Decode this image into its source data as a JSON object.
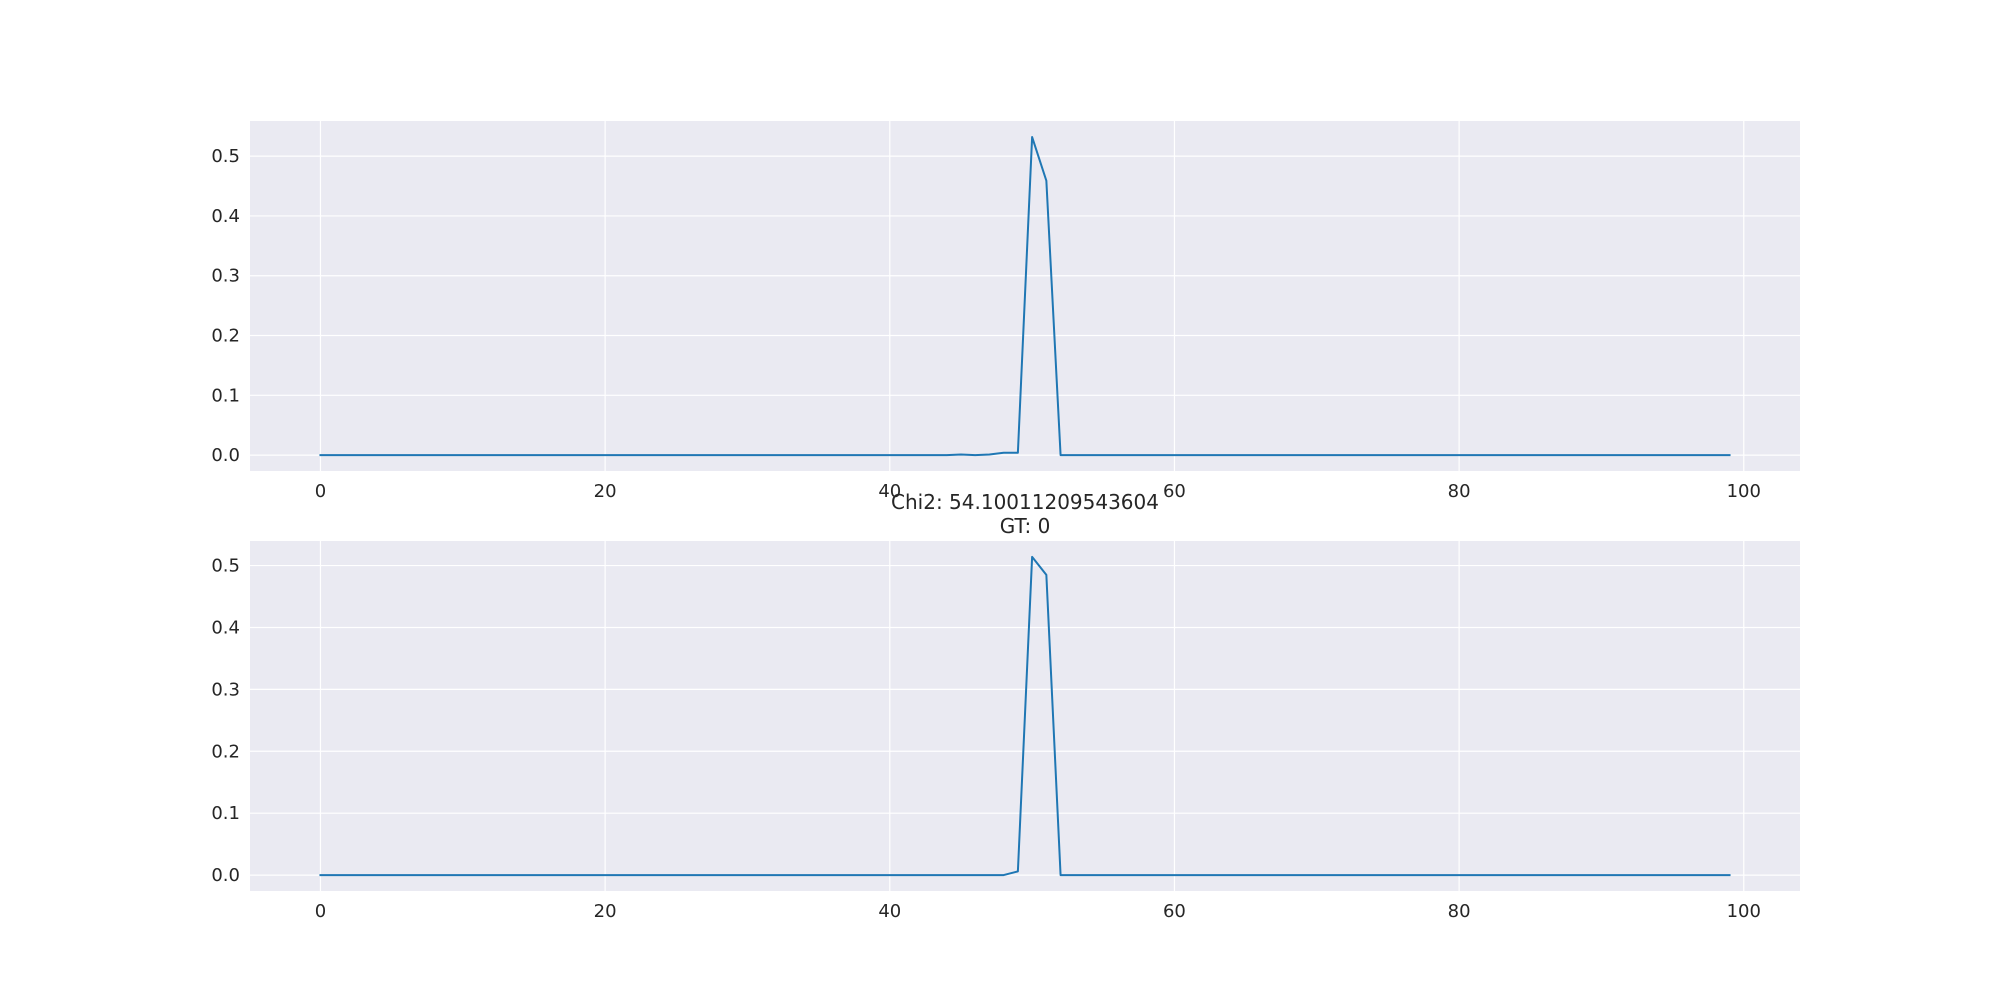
{
  "chart_data": [
    {
      "type": "line",
      "title_lines": [],
      "xlim": [
        -4.95,
        103.95
      ],
      "ylim": [
        -0.0266,
        0.5588
      ],
      "xticks": [
        0,
        20,
        40,
        60,
        80,
        100
      ],
      "yticks": [
        0.0,
        0.1,
        0.2,
        0.3,
        0.4,
        0.5
      ],
      "grid": true,
      "series": [
        {
          "color": "#1f77b4",
          "points": [
            [
              0,
              0.0
            ],
            [
              44,
              0.0
            ],
            [
              45,
              0.001
            ],
            [
              46,
              0.0
            ],
            [
              47,
              0.001
            ],
            [
              48,
              0.004
            ],
            [
              49,
              0.004
            ],
            [
              50,
              0.532
            ],
            [
              51,
              0.459
            ],
            [
              52,
              0.0
            ],
            [
              99,
              0.0
            ]
          ]
        }
      ]
    },
    {
      "type": "line",
      "title_lines": [
        "Chi2: 54.10011209543604",
        "GT: 0"
      ],
      "xlim": [
        -4.95,
        103.95
      ],
      "ylim": [
        -0.0257,
        0.5397
      ],
      "xticks": [
        0,
        20,
        40,
        60,
        80,
        100
      ],
      "yticks": [
        0.0,
        0.1,
        0.2,
        0.3,
        0.4,
        0.5
      ],
      "grid": true,
      "series": [
        {
          "color": "#1f77b4",
          "points": [
            [
              0,
              0.0
            ],
            [
              48,
              0.0
            ],
            [
              49,
              0.006
            ],
            [
              50,
              0.514
            ],
            [
              51,
              0.485
            ],
            [
              52,
              0.0
            ],
            [
              99,
              0.0
            ]
          ]
        }
      ]
    }
  ],
  "style": {
    "plot_background": "#eaeaf2",
    "grid_color": "#ffffff",
    "text_color": "#262626"
  }
}
